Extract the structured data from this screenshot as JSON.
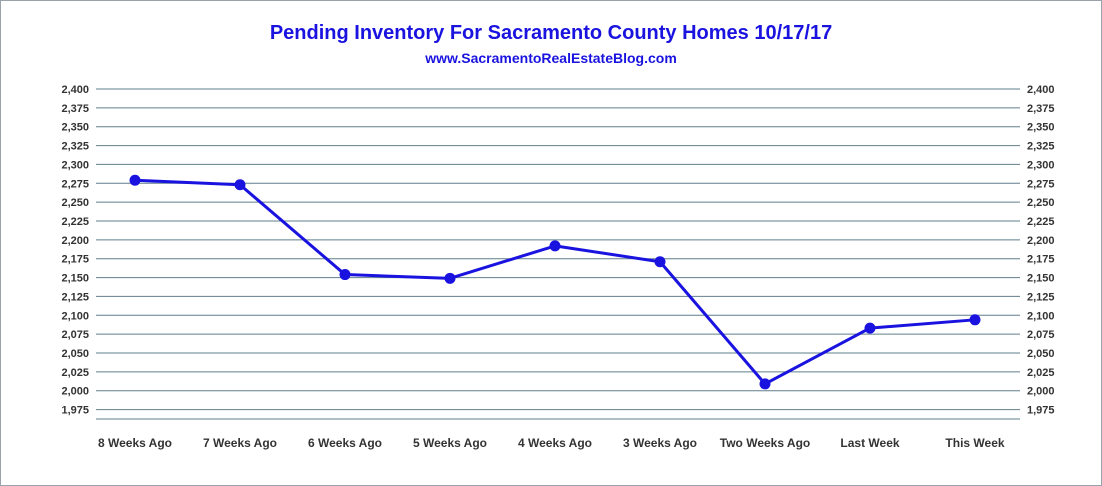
{
  "chart_data": {
    "type": "line",
    "title": "Pending Inventory For Sacramento County Homes 10/17/17",
    "subtitle": "www.SacramentoRealEstateBlog.com",
    "categories": [
      "8 Weeks Ago",
      "7 Weeks Ago",
      "6 Weeks Ago",
      "5 Weeks Ago",
      "4 Weeks Ago",
      "3 Weeks Ago",
      "Two Weeks Ago",
      "Last Week",
      "This Week"
    ],
    "series": [
      {
        "values": [
          2279,
          2273,
          2154,
          2149,
          2192,
          2171,
          2009,
          2083,
          2094
        ]
      }
    ],
    "ylim": [
      1962.5,
      2400
    ],
    "yticks": [
      1975,
      2000,
      2025,
      2050,
      2075,
      2100,
      2125,
      2150,
      2175,
      2200,
      2225,
      2250,
      2275,
      2300,
      2325,
      2350,
      2375,
      2400
    ],
    "ytick_labels": [
      "1,975",
      "2,000",
      "2,025",
      "2,050",
      "2,075",
      "2,100",
      "2,125",
      "2,150",
      "2,175",
      "2,200",
      "2,225",
      "2,250",
      "2,275",
      "2,300",
      "2,325",
      "2,350",
      "2,375",
      "2,400"
    ],
    "grid": true,
    "secondary_y_axis": true,
    "legend": "none",
    "colors": {
      "line": "#1a13e0",
      "grid": "#5f7f8c",
      "text": "#333333"
    }
  }
}
